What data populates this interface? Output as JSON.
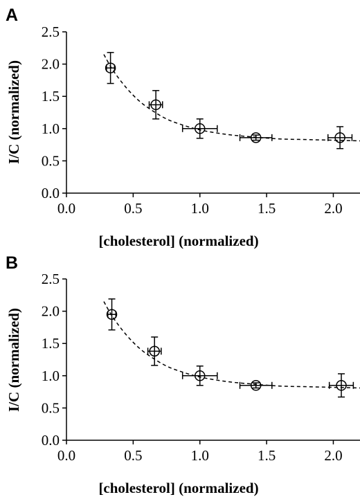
{
  "chart_data": [
    {
      "type": "scatter",
      "panel_label": "A",
      "title": "",
      "xlabel": "[cholesterol] (normalized)",
      "ylabel": "I/C  (normalized)",
      "xlim": [
        0.0,
        2.2
      ],
      "ylim": [
        0.0,
        2.5
      ],
      "xticks": [
        "0.0",
        "0.5",
        "1.0",
        "1.5",
        "2.0"
      ],
      "yticks": [
        "0.0",
        "0.5",
        "1.0",
        "1.5",
        "2.0",
        "2.5"
      ],
      "grid": false,
      "points": [
        {
          "x": 0.33,
          "y": 1.94,
          "xerr": 0.03,
          "yerr": 0.24
        },
        {
          "x": 0.67,
          "y": 1.37,
          "xerr": 0.05,
          "yerr": 0.22
        },
        {
          "x": 1.0,
          "y": 1.0,
          "xerr": 0.13,
          "yerr": 0.15
        },
        {
          "x": 1.42,
          "y": 0.86,
          "xerr": 0.12,
          "yerr": 0.04
        },
        {
          "x": 2.05,
          "y": 0.86,
          "xerr": 0.09,
          "yerr": 0.17
        }
      ],
      "fit_curve": {
        "style": "dashed",
        "x": [
          0.28,
          0.35,
          0.45,
          0.55,
          0.65,
          0.75,
          0.85,
          1.0,
          1.2,
          1.4,
          1.6,
          1.8,
          2.0,
          2.2
        ],
        "y": [
          2.15,
          1.9,
          1.63,
          1.42,
          1.27,
          1.15,
          1.07,
          0.98,
          0.91,
          0.87,
          0.84,
          0.83,
          0.82,
          0.81
        ]
      }
    },
    {
      "type": "scatter",
      "panel_label": "B",
      "title": "",
      "xlabel": "[cholesterol] (normalized)",
      "ylabel": "I/C  (normalized)",
      "xlim": [
        0.0,
        2.2
      ],
      "ylim": [
        0.0,
        2.5
      ],
      "xticks": [
        "0.0",
        "0.5",
        "1.0",
        "1.5",
        "2.0"
      ],
      "yticks": [
        "0.0",
        "0.5",
        "1.0",
        "1.5",
        "2.0",
        "2.5"
      ],
      "grid": false,
      "points": [
        {
          "x": 0.34,
          "y": 1.95,
          "xerr": 0.03,
          "yerr": 0.24
        },
        {
          "x": 0.66,
          "y": 1.38,
          "xerr": 0.05,
          "yerr": 0.22
        },
        {
          "x": 1.0,
          "y": 1.0,
          "xerr": 0.13,
          "yerr": 0.15
        },
        {
          "x": 1.42,
          "y": 0.85,
          "xerr": 0.12,
          "yerr": 0.04
        },
        {
          "x": 2.06,
          "y": 0.85,
          "xerr": 0.09,
          "yerr": 0.18
        }
      ],
      "fit_curve": {
        "style": "dashed",
        "x": [
          0.28,
          0.35,
          0.45,
          0.55,
          0.65,
          0.75,
          0.85,
          1.0,
          1.2,
          1.4,
          1.6,
          1.8,
          2.0,
          2.2
        ],
        "y": [
          2.15,
          1.9,
          1.63,
          1.42,
          1.27,
          1.15,
          1.07,
          0.98,
          0.91,
          0.87,
          0.84,
          0.83,
          0.82,
          0.81
        ]
      }
    }
  ]
}
